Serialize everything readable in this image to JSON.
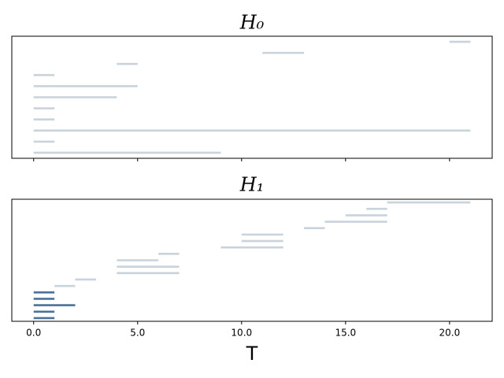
{
  "chart_data": [
    {
      "type": "barcode",
      "title": "H₀",
      "intervals": [
        [
          0,
          9
        ],
        [
          0,
          1
        ],
        [
          0,
          21
        ],
        [
          0,
          1
        ],
        [
          0,
          1
        ],
        [
          0,
          4
        ],
        [
          0,
          5
        ],
        [
          0,
          1
        ],
        [
          4,
          5
        ],
        [
          11,
          13
        ],
        [
          20,
          21
        ]
      ],
      "colors": [
        "#c8d3dc",
        "#c8d3dc",
        "#c8d3dc",
        "#c8d3dc",
        "#c8d3dc",
        "#c8d3dc",
        "#c8d3dc",
        "#c8d3dc",
        "#c8d3dc",
        "#c8d3dc",
        "#c8d3dc"
      ],
      "xlim": [
        -1.05,
        22.05
      ],
      "xticks": [
        0,
        5,
        10,
        15,
        20
      ],
      "show_xtick_labels": false
    },
    {
      "type": "barcode",
      "title": "H₁",
      "xlabel": "T",
      "intervals": [
        [
          0,
          1
        ],
        [
          0,
          1
        ],
        [
          0,
          2
        ],
        [
          0,
          1
        ],
        [
          0,
          1
        ],
        [
          1,
          2
        ],
        [
          2,
          3
        ],
        [
          4,
          7
        ],
        [
          4,
          7
        ],
        [
          4,
          6
        ],
        [
          6,
          7
        ],
        [
          9,
          12
        ],
        [
          10,
          12
        ],
        [
          10,
          12
        ],
        [
          13,
          14
        ],
        [
          14,
          17
        ],
        [
          15,
          17
        ],
        [
          16,
          17
        ],
        [
          17,
          21
        ]
      ],
      "colors": [
        "#4a729a",
        "#4a729a",
        "#4a729a",
        "#4a729a",
        "#4a729a",
        "#c8d3dc",
        "#c8d3dc",
        "#c8d3dc",
        "#c8d3dc",
        "#c8d3dc",
        "#c8d3dc",
        "#c8d3dc",
        "#c8d3dc",
        "#c8d3dc",
        "#c8d3dc",
        "#c8d3dc",
        "#c8d3dc",
        "#c8d3dc",
        "#c8d3dc"
      ],
      "xlim": [
        -1.05,
        22.05
      ],
      "xticks": [
        {
          "value": 0,
          "label": "0.0"
        },
        {
          "value": 5,
          "label": "5.0"
        },
        {
          "value": 10,
          "label": "10.0"
        },
        {
          "value": 15,
          "label": "15.0"
        },
        {
          "value": 20,
          "label": "20.0"
        }
      ],
      "show_xtick_labels": true
    }
  ]
}
